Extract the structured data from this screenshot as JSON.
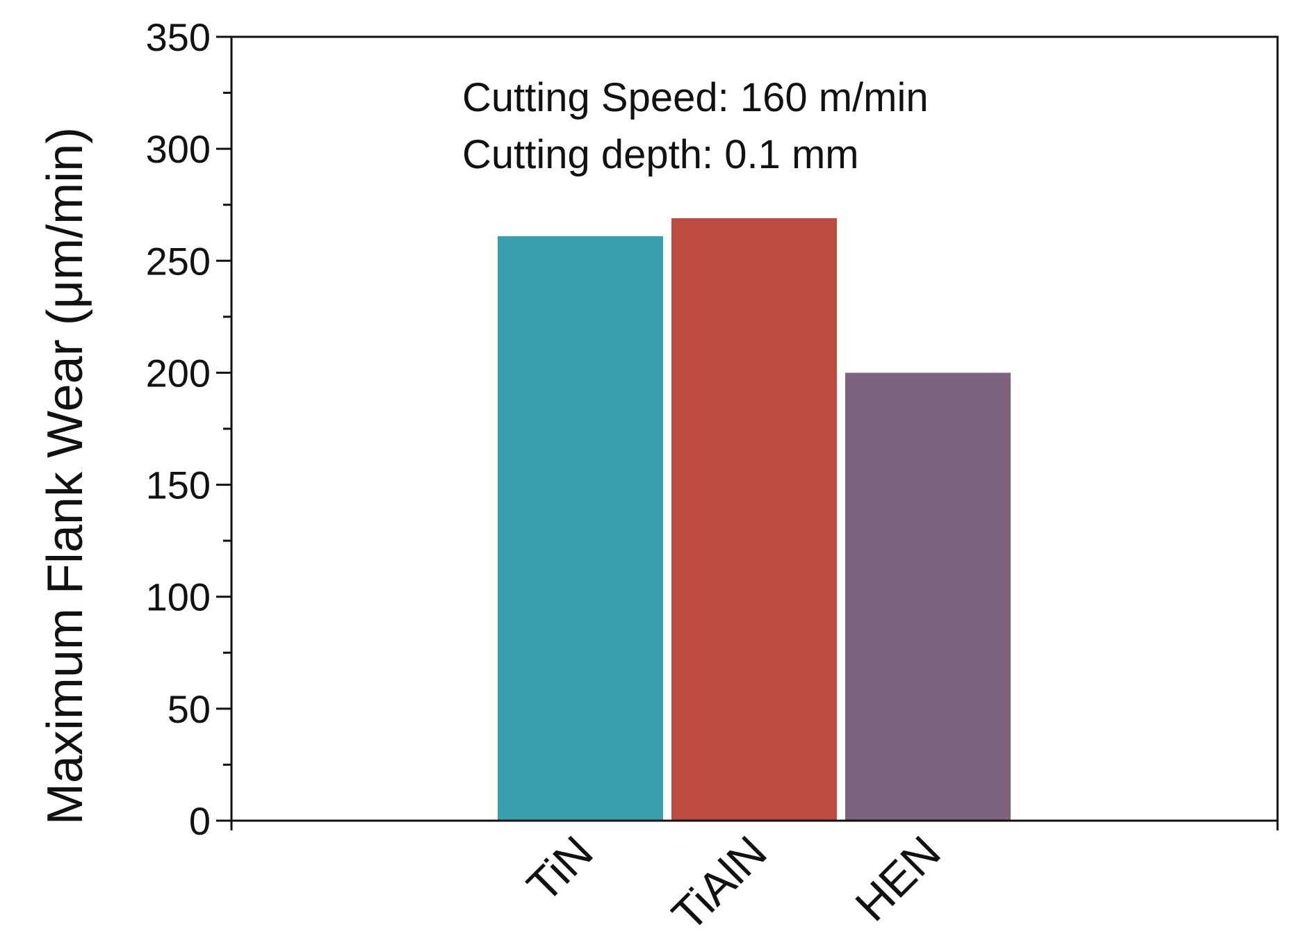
{
  "chart_data": {
    "type": "bar",
    "categories": [
      "TiN",
      "TiAlN",
      "HEN"
    ],
    "values": [
      261,
      269,
      200
    ],
    "colors": [
      "#379FB0",
      "#BD4B42",
      "#7E637F"
    ],
    "ylabel": "Maximum Flank Wear (μm/min)",
    "xlabel": "",
    "ylim": [
      0,
      350
    ],
    "yticks": [
      0,
      50,
      100,
      150,
      200,
      250,
      300,
      350
    ],
    "annotations": [
      "Cutting Speed: 160 m/min",
      "Cutting depth: 0.1 mm"
    ],
    "grid": false,
    "legend": "none"
  }
}
